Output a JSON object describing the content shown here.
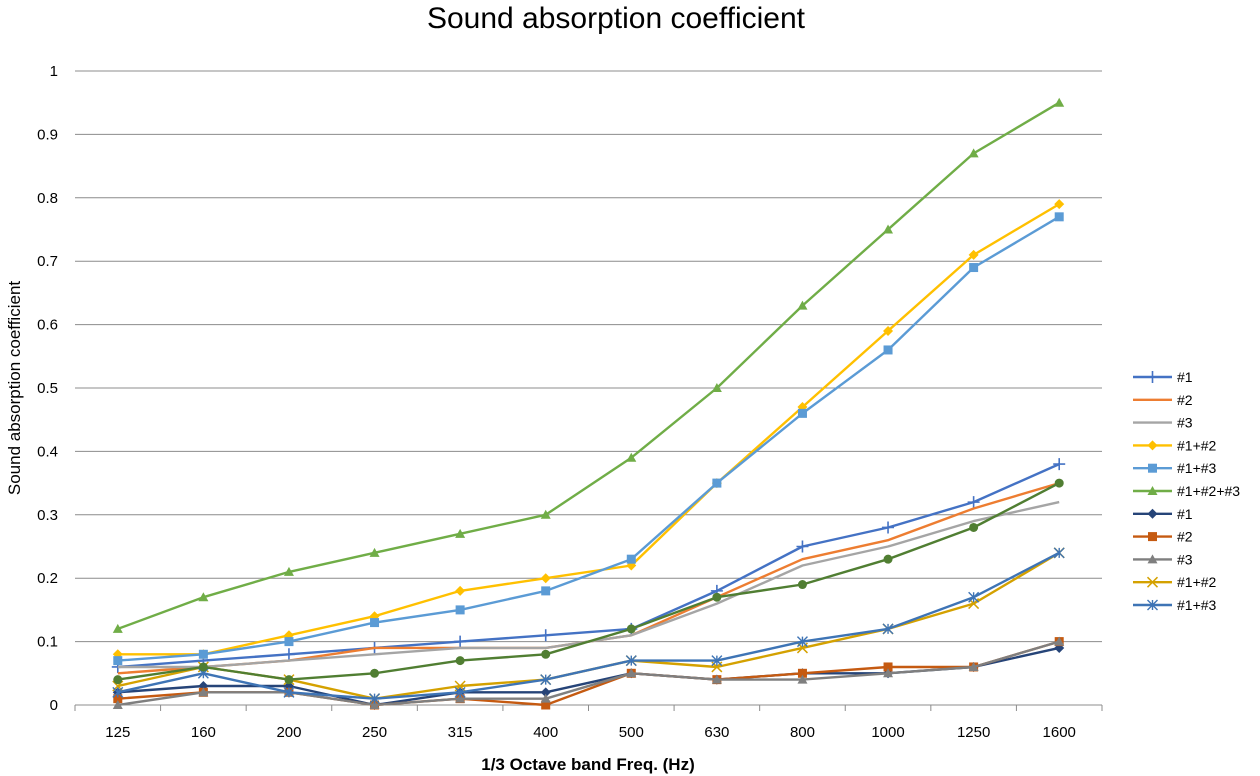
{
  "chart_data": {
    "type": "line",
    "title": "Sound absorption coefficient",
    "xlabel": "1/3 Octave band Freq. (Hz)",
    "ylabel": "Sound absorption coefficient",
    "ylim": [
      0,
      1
    ],
    "yticks": [
      "0",
      "0.1",
      "0.2",
      "0.3",
      "0.4",
      "0.5",
      "0.6",
      "0.7",
      "0.8",
      "0.9",
      "1"
    ],
    "ytick_values": [
      0,
      0.1,
      0.2,
      0.3,
      0.4,
      0.5,
      0.6,
      0.7,
      0.8,
      0.9,
      1
    ],
    "categories": [
      "125",
      "160",
      "200",
      "250",
      "315",
      "400",
      "500",
      "630",
      "800",
      "1000",
      "1250",
      "1600"
    ],
    "grid": "horizontal",
    "legend_position": "right",
    "series": [
      {
        "name": "#1",
        "color": "#4472C4",
        "marker": "plus",
        "values": [
          0.06,
          0.07,
          0.08,
          0.09,
          0.1,
          0.11,
          0.12,
          0.18,
          0.25,
          0.28,
          0.32,
          0.38
        ]
      },
      {
        "name": "#2",
        "color": "#ED7D31",
        "marker": "none",
        "values": [
          0.05,
          0.06,
          0.07,
          0.09,
          0.09,
          0.09,
          0.11,
          0.17,
          0.23,
          0.26,
          0.31,
          0.35
        ]
      },
      {
        "name": "#3",
        "color": "#A5A5A5",
        "marker": "none",
        "values": [
          0.06,
          0.06,
          0.07,
          0.08,
          0.09,
          0.09,
          0.11,
          0.16,
          0.22,
          0.25,
          0.29,
          0.32
        ]
      },
      {
        "name": "#1+#2",
        "color": "#FFC000",
        "marker": "diamond",
        "values": [
          0.08,
          0.08,
          0.11,
          0.14,
          0.18,
          0.2,
          0.22,
          0.35,
          0.47,
          0.59,
          0.71,
          0.79
        ]
      },
      {
        "name": "#1+#3",
        "color": "#5B9BD5",
        "marker": "square",
        "values": [
          0.07,
          0.08,
          0.1,
          0.13,
          0.15,
          0.18,
          0.23,
          0.35,
          0.46,
          0.56,
          0.69,
          0.77
        ]
      },
      {
        "name": "#1+#2+#3",
        "color": "#70AD47",
        "marker": "triangle",
        "values": [
          0.12,
          0.17,
          0.21,
          0.24,
          0.27,
          0.3,
          0.39,
          0.5,
          0.63,
          0.75,
          0.87,
          0.95
        ]
      },
      {
        "name": "#1",
        "color": "#264478",
        "marker": "diamond",
        "values": [
          0.02,
          0.03,
          0.03,
          0.0,
          0.02,
          0.02,
          0.05,
          0.04,
          0.05,
          0.05,
          0.06,
          0.09
        ]
      },
      {
        "name": "#2",
        "color": "#C55A11",
        "marker": "square",
        "values": [
          0.01,
          0.02,
          0.02,
          0.0,
          0.01,
          0.0,
          0.05,
          0.04,
          0.05,
          0.06,
          0.06,
          0.1
        ]
      },
      {
        "name": "#3",
        "color": "#7F7F7F",
        "marker": "triangle",
        "values": [
          0.0,
          0.02,
          0.02,
          0.0,
          0.01,
          0.01,
          0.05,
          0.04,
          0.04,
          0.05,
          0.06,
          0.1
        ]
      },
      {
        "name": "#1+#2",
        "color": "#D4A100",
        "marker": "x",
        "values": [
          0.03,
          0.06,
          0.04,
          0.01,
          0.03,
          0.04,
          0.07,
          0.06,
          0.09,
          0.12,
          0.16,
          0.24
        ]
      },
      {
        "name": "#1+#3",
        "color": "#3E74B5",
        "marker": "asterisk",
        "values": [
          0.02,
          0.05,
          0.02,
          0.01,
          0.02,
          0.04,
          0.07,
          0.07,
          0.1,
          0.12,
          0.17,
          0.24
        ]
      },
      {
        "name": "",
        "color": "#507E32",
        "marker": "circle",
        "in_legend": false,
        "values": [
          0.04,
          0.06,
          0.04,
          0.05,
          0.07,
          0.08,
          0.12,
          0.17,
          0.19,
          0.23,
          0.28,
          0.35
        ]
      }
    ]
  }
}
